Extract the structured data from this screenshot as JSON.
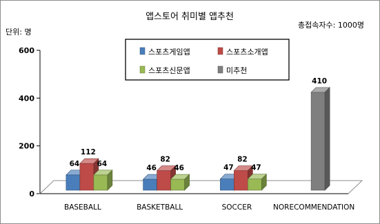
{
  "chart_data": {
    "type": "bar",
    "style": "3d-clustered-column",
    "title": "앱스토어 취미별 앱추천",
    "unit_label": "단위: 명",
    "annotation": "총접속자수: 1000명",
    "categories": [
      "BASEBALL",
      "BASKETBALL",
      "SOCCER",
      "NORECOMMENDATION"
    ],
    "series": [
      {
        "name": "스포츠게임앱",
        "color": "#4a7ebb",
        "values": [
          64,
          46,
          47,
          null
        ]
      },
      {
        "name": "스포츠소개앱",
        "color": "#be4b48",
        "values": [
          112,
          82,
          82,
          null
        ]
      },
      {
        "name": "스포츠신문앱",
        "color": "#98b954",
        "values": [
          64,
          46,
          47,
          null
        ]
      },
      {
        "name": "미추천",
        "color": "#7f7f7f",
        "values": [
          null,
          null,
          null,
          410
        ]
      }
    ],
    "y_ticks": [
      "0",
      "200",
      "400",
      "600"
    ],
    "ylim": [
      0,
      600
    ],
    "legend_position": "top-center, 2x2 grid",
    "grid": false
  }
}
